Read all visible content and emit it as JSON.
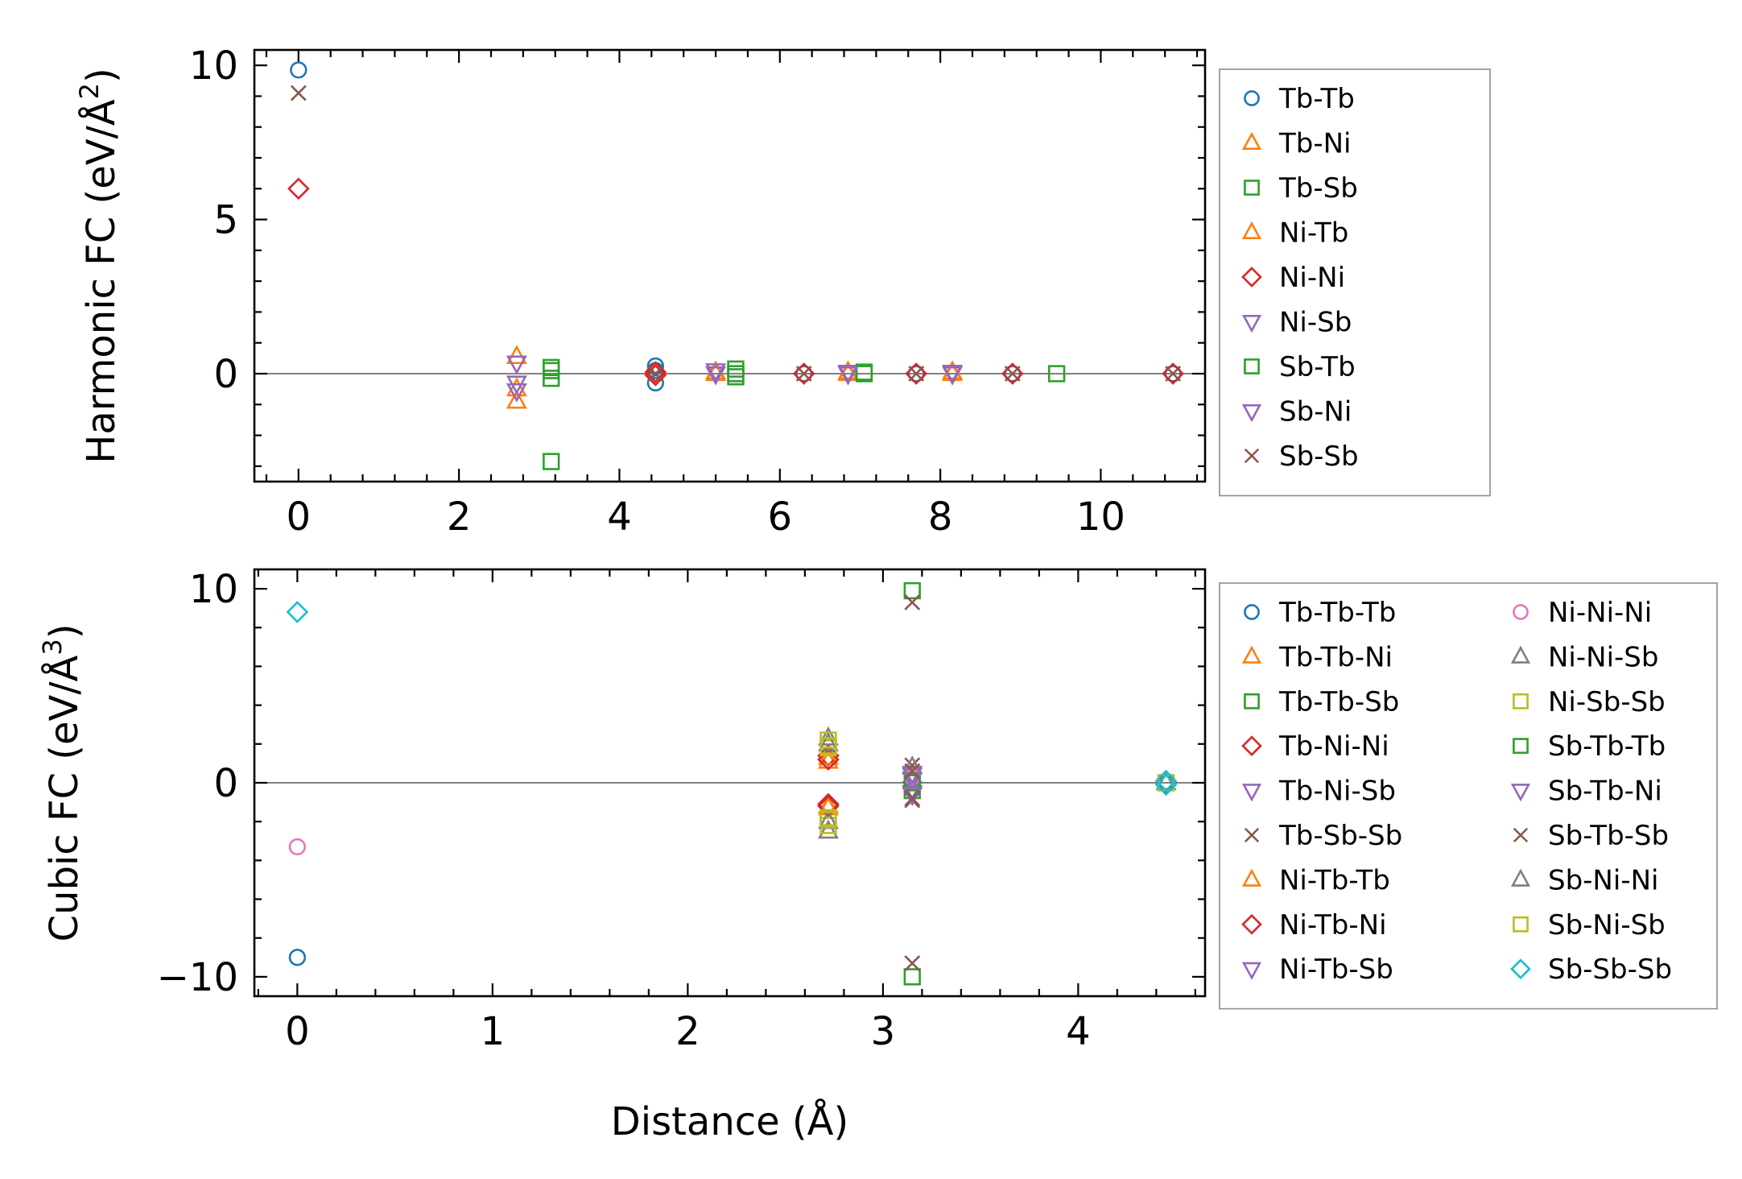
{
  "chart_data": [
    {
      "type": "scatter",
      "id": "harmonic",
      "ylabel": "Harmonic FC (eV/Å²)",
      "ylabel_prefix": "Harmonic FC (eV/Å",
      "ylabel_sup": "2",
      "ylabel_suffix": ")",
      "xlabel": "",
      "xlim": [
        -0.55,
        11.3
      ],
      "ylim": [
        -3.5,
        10.5
      ],
      "xticks": [
        0,
        2,
        4,
        6,
        8,
        10
      ],
      "xtick_labels": [
        "0",
        "2",
        "4",
        "6",
        "8",
        "10"
      ],
      "yticks": [
        0,
        5,
        10
      ],
      "ytick_labels": [
        "0",
        "5",
        "10"
      ],
      "zero_line": true,
      "legend_position": "right",
      "series": [
        {
          "name": "Tb-Tb",
          "marker": "circle",
          "color": "#1f77b4",
          "points": [
            [
              0,
              9.85
            ],
            [
              4.45,
              0.25
            ],
            [
              4.45,
              -0.3
            ],
            [
              4.45,
              0.1
            ],
            [
              6.3,
              0
            ],
            [
              7.7,
              0
            ],
            [
              8.9,
              0
            ],
            [
              10.9,
              0
            ]
          ]
        },
        {
          "name": "Tb-Ni",
          "marker": "triangle-up",
          "color": "#ff7f0e",
          "points": [
            [
              2.72,
              0.55
            ],
            [
              2.72,
              -0.9
            ],
            [
              5.2,
              0
            ],
            [
              6.85,
              0
            ],
            [
              8.15,
              0
            ]
          ]
        },
        {
          "name": "Tb-Sb",
          "marker": "square",
          "color": "#2ca02c",
          "points": [
            [
              3.15,
              0.2
            ],
            [
              3.15,
              -0.15
            ],
            [
              3.15,
              -2.85
            ],
            [
              5.45,
              0.15
            ],
            [
              5.45,
              -0.1
            ],
            [
              7.05,
              0
            ],
            [
              9.45,
              0
            ]
          ]
        },
        {
          "name": "Ni-Tb",
          "marker": "triangle-up",
          "color": "#ff7f0e",
          "points": [
            [
              2.72,
              -0.5
            ],
            [
              5.2,
              0.05
            ],
            [
              6.85,
              0.05
            ],
            [
              8.15,
              0.05
            ]
          ]
        },
        {
          "name": "Ni-Ni",
          "marker": "diamond",
          "color": "#d62728",
          "points": [
            [
              0,
              6.0
            ],
            [
              4.45,
              0.05
            ],
            [
              4.45,
              -0.05
            ],
            [
              6.3,
              0
            ],
            [
              7.7,
              0
            ],
            [
              8.9,
              0
            ],
            [
              10.9,
              0
            ]
          ]
        },
        {
          "name": "Ni-Sb",
          "marker": "triangle-down",
          "color": "#9467bd",
          "points": [
            [
              2.72,
              0.35
            ],
            [
              2.72,
              -0.3
            ],
            [
              5.2,
              0.1
            ],
            [
              6.85,
              0.05
            ],
            [
              8.15,
              0.05
            ]
          ]
        },
        {
          "name": "Sb-Tb",
          "marker": "square",
          "color": "#2ca02c",
          "points": [
            [
              3.15,
              0.1
            ],
            [
              5.45,
              0
            ],
            [
              7.05,
              0.05
            ]
          ]
        },
        {
          "name": "Sb-Ni",
          "marker": "triangle-down",
          "color": "#9467bd",
          "points": [
            [
              2.72,
              -0.55
            ],
            [
              5.2,
              0
            ],
            [
              6.85,
              0
            ],
            [
              8.15,
              0
            ]
          ]
        },
        {
          "name": "Sb-Sb",
          "marker": "x",
          "color": "#8c564b",
          "points": [
            [
              0,
              9.1
            ],
            [
              4.45,
              0
            ],
            [
              6.3,
              0
            ],
            [
              7.7,
              0
            ],
            [
              8.9,
              0
            ],
            [
              10.9,
              0
            ]
          ]
        }
      ]
    },
    {
      "type": "scatter",
      "id": "cubic",
      "ylabel": "Cubic FC (eV/Å³)",
      "ylabel_prefix": "Cubic FC (eV/Å",
      "ylabel_sup": "3",
      "ylabel_suffix": ")",
      "xlabel": "Distance (Å)",
      "xlim": [
        -0.22,
        4.65
      ],
      "ylim": [
        -11,
        11
      ],
      "xticks": [
        0,
        1,
        2,
        3,
        4
      ],
      "xtick_labels": [
        "0",
        "1",
        "2",
        "3",
        "4"
      ],
      "yticks": [
        -10,
        0,
        10
      ],
      "ytick_labels": [
        "−10",
        "0",
        "10"
      ],
      "zero_line": true,
      "legend_position": "right",
      "legend_columns": 2,
      "series": [
        {
          "name": "Tb-Tb-Tb",
          "marker": "circle",
          "color": "#1f77b4",
          "points": [
            [
              0,
              -9.0
            ],
            [
              4.45,
              0
            ]
          ]
        },
        {
          "name": "Tb-Tb-Ni",
          "marker": "triangle-up",
          "color": "#ff7f0e",
          "points": [
            [
              2.72,
              1.1
            ],
            [
              2.72,
              -1.2
            ]
          ]
        },
        {
          "name": "Tb-Tb-Sb",
          "marker": "square",
          "color": "#2ca02c",
          "points": [
            [
              3.15,
              0.3
            ],
            [
              3.15,
              -0.4
            ]
          ]
        },
        {
          "name": "Tb-Ni-Ni",
          "marker": "diamond",
          "color": "#d62728",
          "points": [
            [
              2.72,
              1.4
            ],
            [
              2.72,
              -1.1
            ],
            [
              4.45,
              0
            ]
          ]
        },
        {
          "name": "Tb-Ni-Sb",
          "marker": "triangle-down",
          "color": "#9467bd",
          "points": [
            [
              3.15,
              0.5
            ],
            [
              3.15,
              -0.5
            ]
          ]
        },
        {
          "name": "Tb-Sb-Sb",
          "marker": "x",
          "color": "#8c564b",
          "points": [
            [
              3.15,
              0.9
            ],
            [
              3.15,
              -0.9
            ]
          ]
        },
        {
          "name": "Ni-Tb-Tb",
          "marker": "triangle-up",
          "color": "#ff7f0e",
          "points": [
            [
              2.72,
              1.3
            ],
            [
              2.72,
              -1.3
            ]
          ]
        },
        {
          "name": "Ni-Tb-Ni",
          "marker": "diamond",
          "color": "#d62728",
          "points": [
            [
              2.72,
              1.2
            ],
            [
              2.72,
              -1.2
            ]
          ]
        },
        {
          "name": "Ni-Tb-Sb",
          "marker": "triangle-down",
          "color": "#9467bd",
          "points": [
            [
              3.15,
              0.4
            ],
            [
              3.15,
              -0.3
            ]
          ]
        },
        {
          "name": "Ni-Ni-Ni",
          "marker": "circle",
          "color": "#e377c2",
          "points": [
            [
              0,
              -3.3
            ],
            [
              3.15,
              0.3
            ]
          ]
        },
        {
          "name": "Ni-Ni-Sb",
          "marker": "triangle-up",
          "color": "#7f7f7f",
          "points": [
            [
              2.72,
              2.3
            ],
            [
              2.72,
              -2.5
            ],
            [
              3.15,
              0.8
            ]
          ]
        },
        {
          "name": "Ni-Sb-Sb",
          "marker": "square",
          "color": "#bcbd22",
          "points": [
            [
              2.72,
              2.2
            ],
            [
              2.72,
              1.8
            ],
            [
              2.72,
              -1.8
            ],
            [
              2.72,
              -2.2
            ],
            [
              4.45,
              0
            ]
          ]
        },
        {
          "name": "Sb-Tb-Tb",
          "marker": "square",
          "color": "#2ca02c",
          "points": [
            [
              3.15,
              9.9
            ],
            [
              3.15,
              -10.0
            ],
            [
              3.15,
              0
            ]
          ]
        },
        {
          "name": "Sb-Tb-Ni",
          "marker": "triangle-down",
          "color": "#9467bd",
          "points": [
            [
              3.15,
              0.2
            ],
            [
              3.15,
              -0.6
            ]
          ]
        },
        {
          "name": "Sb-Tb-Sb",
          "marker": "x",
          "color": "#8c564b",
          "points": [
            [
              3.15,
              9.3
            ],
            [
              3.15,
              -9.3
            ],
            [
              3.15,
              0.6
            ],
            [
              3.15,
              -0.8
            ]
          ]
        },
        {
          "name": "Sb-Ni-Ni",
          "marker": "triangle-up",
          "color": "#7f7f7f",
          "points": [
            [
              2.72,
              2.0
            ],
            [
              2.72,
              -2.0
            ],
            [
              4.45,
              0
            ]
          ]
        },
        {
          "name": "Sb-Ni-Sb",
          "marker": "square",
          "color": "#bcbd22",
          "points": [
            [
              2.72,
              1.9
            ],
            [
              2.72,
              -1.9
            ],
            [
              4.45,
              0
            ]
          ]
        },
        {
          "name": "Sb-Sb-Sb",
          "marker": "diamond",
          "color": "#17becf",
          "points": [
            [
              0,
              8.8
            ],
            [
              4.45,
              0.1
            ],
            [
              4.45,
              -0.1
            ]
          ]
        }
      ]
    }
  ]
}
